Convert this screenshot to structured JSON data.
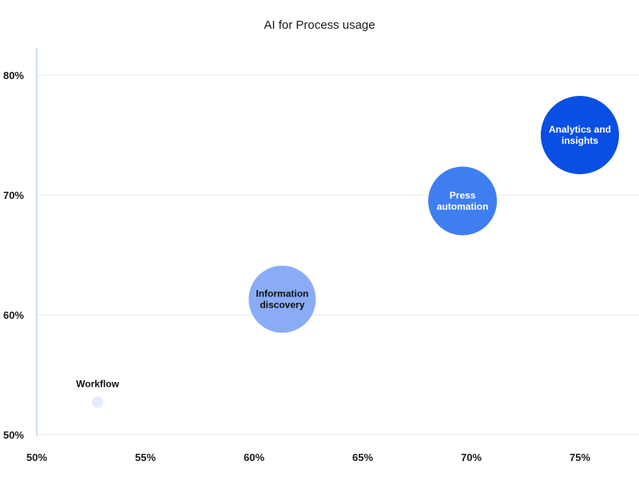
{
  "chart_data": {
    "type": "bubble",
    "title": "AI for Process usage",
    "x_ticks": [
      "50%",
      "55%",
      "60%",
      "65%",
      "70%",
      "75%"
    ],
    "y_ticks": [
      "50%",
      "60%",
      "70%",
      "80%"
    ],
    "xlim": [
      50,
      77.8
    ],
    "ylim": [
      50,
      81.3
    ],
    "grid": true,
    "points": [
      {
        "label_lines": [
          "Workflow"
        ],
        "x": 52.8,
        "y": 52.7,
        "size": 7,
        "color": "#e4ebfd",
        "label_color": "#111111",
        "label_position": "above"
      },
      {
        "label_lines": [
          "Information",
          "discovery"
        ],
        "x": 61.3,
        "y": 61.3,
        "size": 42,
        "color": "#89acf5",
        "label_color": "#111111",
        "label_position": "center"
      },
      {
        "label_lines": [
          "Press",
          "automation"
        ],
        "x": 69.6,
        "y": 69.5,
        "size": 43,
        "color": "#3f7ef1",
        "label_color": "#ffffff",
        "label_position": "center"
      },
      {
        "label_lines": [
          "Analytics and",
          "insights"
        ],
        "x": 75.0,
        "y": 75.0,
        "size": 49,
        "color": "#0a4fe3",
        "label_color": "#ffffff",
        "label_position": "center"
      }
    ]
  }
}
